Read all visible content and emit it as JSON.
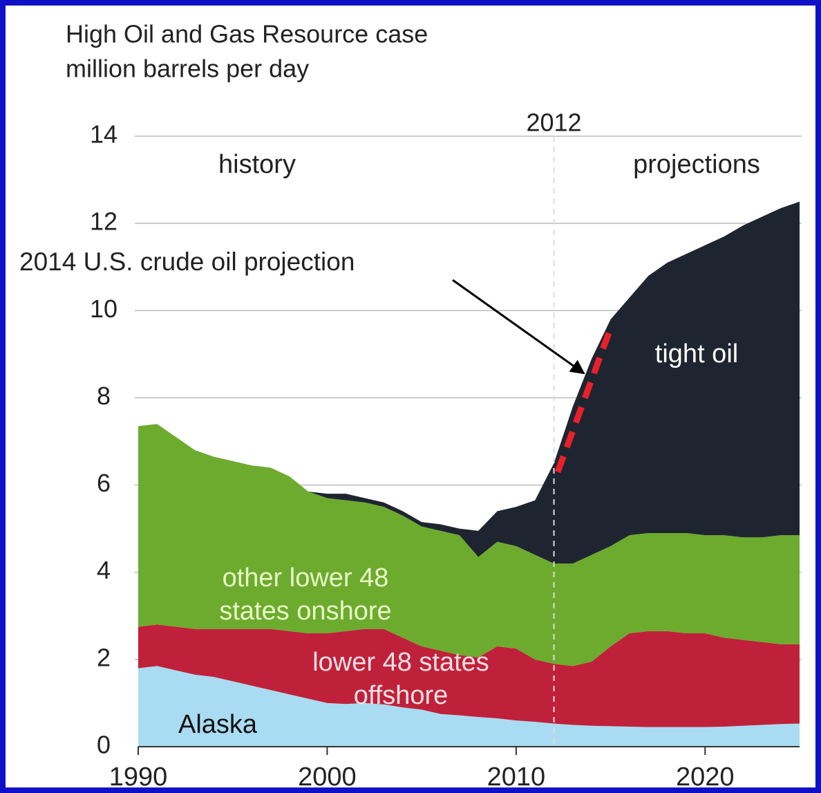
{
  "chart_data": {
    "type": "stacked-area",
    "title": "High Oil and Gas Resource case",
    "y_label": "million barrels per day",
    "x": [
      1990,
      1991,
      1992,
      1993,
      1994,
      1995,
      1996,
      1997,
      1998,
      1999,
      2000,
      2001,
      2002,
      2003,
      2004,
      2005,
      2006,
      2007,
      2008,
      2009,
      2010,
      2011,
      2012,
      2013,
      2014,
      2015,
      2016,
      2017,
      2018,
      2019,
      2020,
      2021,
      2022,
      2023,
      2024,
      2025
    ],
    "series": [
      {
        "name": "Alaska",
        "color": "#a9dcf2",
        "values": [
          1.8,
          1.85,
          1.75,
          1.65,
          1.6,
          1.5,
          1.4,
          1.3,
          1.2,
          1.1,
          1.0,
          0.98,
          1.0,
          0.97,
          0.9,
          0.85,
          0.75,
          0.72,
          0.68,
          0.65,
          0.6,
          0.57,
          0.53,
          0.5,
          0.48,
          0.47,
          0.46,
          0.45,
          0.45,
          0.45,
          0.45,
          0.46,
          0.48,
          0.5,
          0.52,
          0.53
        ]
      },
      {
        "name": "lower 48 states offshore",
        "color": "#c0213a",
        "values": [
          0.95,
          0.95,
          1.0,
          1.05,
          1.1,
          1.2,
          1.3,
          1.4,
          1.45,
          1.5,
          1.6,
          1.67,
          1.7,
          1.73,
          1.6,
          1.45,
          1.45,
          1.38,
          1.37,
          1.65,
          1.65,
          1.43,
          1.37,
          1.35,
          1.47,
          1.83,
          2.14,
          2.2,
          2.2,
          2.15,
          2.15,
          2.04,
          1.97,
          1.9,
          1.83,
          1.82
        ]
      },
      {
        "name": "other lower 48 states onshore",
        "color": "#6cab2e",
        "values": [
          4.6,
          4.6,
          4.35,
          4.1,
          3.95,
          3.85,
          3.75,
          3.7,
          3.55,
          3.25,
          3.1,
          3.0,
          2.9,
          2.8,
          2.8,
          2.75,
          2.75,
          2.75,
          2.3,
          2.4,
          2.35,
          2.4,
          2.3,
          2.35,
          2.45,
          2.3,
          2.25,
          2.25,
          2.25,
          2.3,
          2.25,
          2.35,
          2.35,
          2.4,
          2.5,
          2.5
        ]
      },
      {
        "name": "tight oil",
        "color": "#1f2530",
        "values": [
          0,
          0,
          0,
          0,
          0,
          0,
          0,
          0,
          0,
          0,
          0.1,
          0.15,
          0.1,
          0.1,
          0.1,
          0.1,
          0.15,
          0.15,
          0.6,
          0.7,
          0.9,
          1.25,
          2.3,
          3.6,
          4.5,
          5.2,
          5.45,
          5.9,
          6.2,
          6.4,
          6.65,
          6.85,
          7.15,
          7.35,
          7.5,
          7.65
        ]
      }
    ],
    "xlim": [
      1990,
      2025
    ],
    "xticks": [
      1990,
      2000,
      2010,
      2020
    ],
    "ylim": [
      0,
      14
    ],
    "yticks": [
      0,
      2,
      4,
      6,
      8,
      10,
      12,
      14
    ],
    "grid": true,
    "divider_x": 2012,
    "history_label": "history",
    "projections_label": "projections",
    "projection": {
      "name": "2014 U.S. crude oil projection",
      "color": "#e8202a",
      "x": [
        2012.2,
        2015
      ],
      "values": [
        6.3,
        9.6
      ]
    }
  }
}
